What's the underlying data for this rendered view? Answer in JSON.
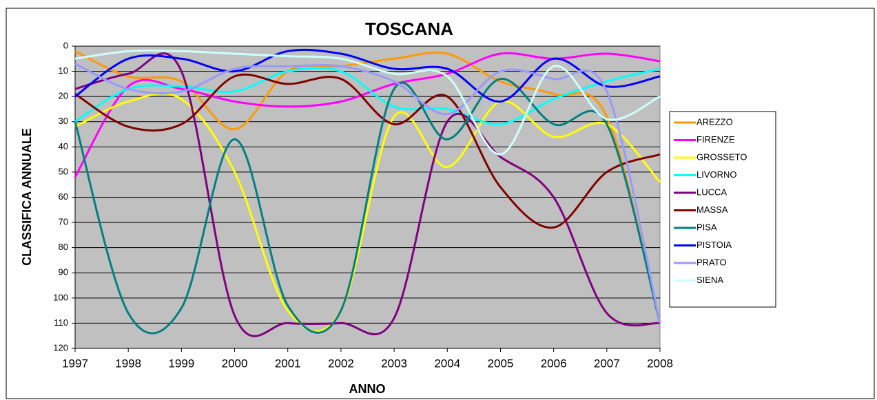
{
  "chart_data": {
    "type": "line",
    "title": "TOSCANA",
    "x_label": "ANNO",
    "y_label": "CLASSIFICA ANNUALE",
    "x": [
      1997,
      1998,
      1999,
      2000,
      2001,
      2002,
      2003,
      2004,
      2005,
      2006,
      2007,
      2008
    ],
    "xlim": [
      1997,
      2008
    ],
    "xticks": [
      1997,
      1998,
      1999,
      2000,
      2001,
      2002,
      2003,
      2004,
      2005,
      2006,
      2007,
      2008
    ],
    "ylim": [
      0,
      120
    ],
    "yticks": [
      0,
      10,
      20,
      30,
      40,
      50,
      60,
      70,
      80,
      90,
      100,
      110,
      120
    ],
    "y_inverted": true,
    "grid": true,
    "smooth": true,
    "legend": "right",
    "series": [
      {
        "name": "AREZZO",
        "color": "#ff9900",
        "values": [
          2,
          12,
          14,
          33,
          10,
          8,
          5,
          3,
          14,
          19,
          28,
          110
        ]
      },
      {
        "name": "FIRENZE",
        "color": "#ff00ff",
        "values": [
          52,
          16,
          17,
          22,
          24,
          22,
          15,
          11,
          3,
          5,
          3,
          6
        ]
      },
      {
        "name": "GROSSETO",
        "color": "#ffff00",
        "values": [
          32,
          22,
          21,
          50,
          105,
          105,
          28,
          48,
          22,
          36,
          31,
          54
        ]
      },
      {
        "name": "LIVORNO",
        "color": "#00ffff",
        "values": [
          30,
          17,
          16,
          18,
          10,
          10,
          24,
          25,
          31,
          21,
          14,
          9
        ]
      },
      {
        "name": "LUCCA",
        "color": "#800080",
        "values": [
          17,
          11,
          10,
          107,
          110,
          110,
          108,
          30,
          44,
          60,
          106,
          110
        ]
      },
      {
        "name": "MASSA",
        "color": "#800000",
        "values": [
          19,
          32,
          31,
          12,
          15,
          13,
          31,
          20,
          56,
          72,
          50,
          43
        ]
      },
      {
        "name": "PISA",
        "color": "#008080",
        "values": [
          30,
          106,
          104,
          37,
          103,
          105,
          17,
          37,
          13,
          31,
          31,
          110
        ]
      },
      {
        "name": "PISTOIA",
        "color": "#0000ff",
        "values": [
          20,
          5,
          5,
          10,
          2,
          3,
          9,
          9,
          22,
          5,
          16,
          12
        ]
      },
      {
        "name": "PRATO",
        "color": "#9999ff",
        "values": [
          7,
          17,
          18,
          9,
          8,
          8,
          14,
          27,
          10,
          13,
          18,
          110
        ]
      },
      {
        "name": "SIENA",
        "color": "#ccffff",
        "values": [
          5,
          2,
          2,
          3,
          4,
          5,
          11,
          12,
          43,
          8,
          29,
          20
        ]
      }
    ]
  }
}
